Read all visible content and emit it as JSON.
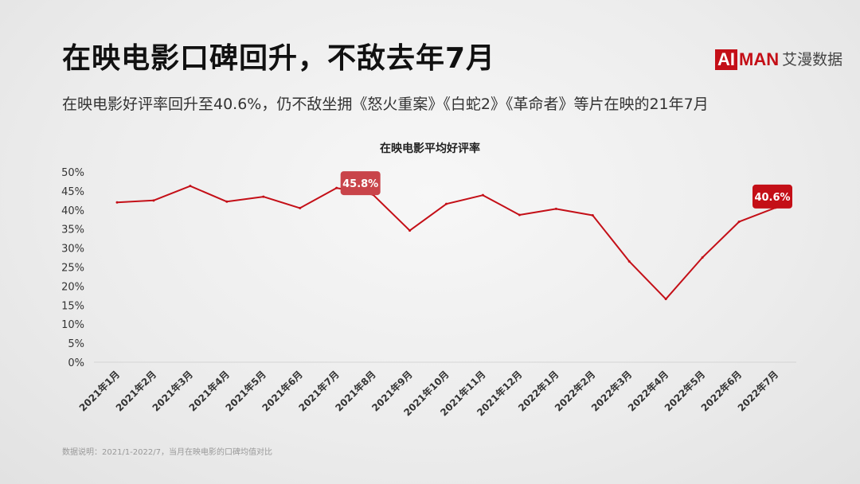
{
  "header": {
    "title": "在映电影口碑回升，不敌去年7月",
    "subtitle": "在映电影好评率回升至40.6%，仍不敌坐拥《怒火重案》《白蛇2》《革命者》等片在映的21年7月"
  },
  "brand": {
    "ai": "AI",
    "man": "MAN",
    "cn": "艾漫数据",
    "accent": "#c40f17"
  },
  "footnote": "数据说明：2021/1-2022/7，当月在映电影的口碑均值对比",
  "chart_data": {
    "type": "line",
    "title": "在映电影平均好评率",
    "x": [
      "2021年1月",
      "2021年2月",
      "2021年3月",
      "2021年4月",
      "2021年5月",
      "2021年6月",
      "2021年7月",
      "2021年8月",
      "2021年9月",
      "2021年10月",
      "2021年11月",
      "2021年12月",
      "2022年1月",
      "2022年2月",
      "2022年3月",
      "2022年4月",
      "2022年5月",
      "2022年6月",
      "2022年7月"
    ],
    "series": [
      {
        "values": [
          42.0,
          42.5,
          46.3,
          42.2,
          43.5,
          40.5,
          45.8,
          44.0,
          34.6,
          41.6,
          43.9,
          38.7,
          40.3,
          38.6,
          26.5,
          16.6,
          27.5,
          36.9,
          40.6
        ],
        "color": "#c40f17"
      }
    ],
    "ylim": [
      0,
      50
    ],
    "yticks": [
      "0%",
      "5%",
      "10%",
      "15%",
      "20%",
      "25%",
      "30%",
      "35%",
      "40%",
      "45%",
      "50%"
    ],
    "ytick_values": [
      0,
      5,
      10,
      15,
      20,
      25,
      30,
      35,
      40,
      45,
      50
    ],
    "grid": false,
    "annotations": [
      {
        "index": 6,
        "label": "45.8%",
        "color": "#c9444a"
      },
      {
        "index": 18,
        "label": "40.6%",
        "color": "#c40f17"
      }
    ]
  }
}
